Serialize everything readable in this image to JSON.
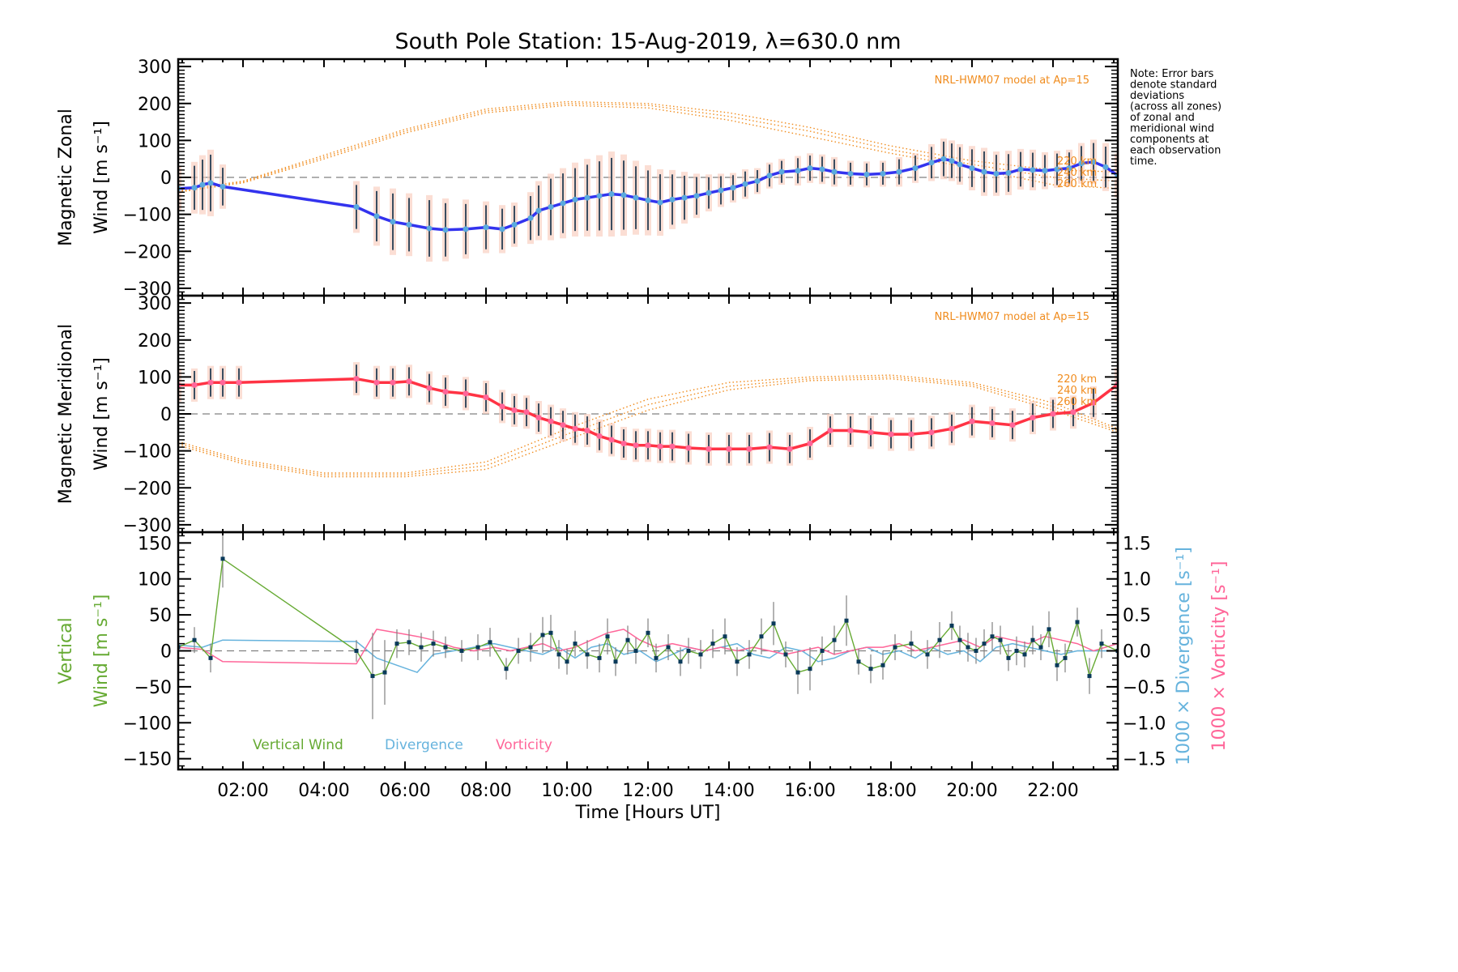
{
  "chart_data": {
    "type": "line",
    "title": "South Pole Station: 15-Aug-2019, λ=630.0 nm",
    "note_lines": [
      "Note: Error bars",
      "denote standard",
      "deviations",
      "(across all zones)",
      "of zonal and",
      "meridional wind",
      "components at",
      "each observation",
      "time."
    ],
    "xlabel": "Time [Hours UT]",
    "xlim": [
      0.4,
      23.6
    ],
    "x_ticks": [
      {
        "value": 2,
        "label": "02:00"
      },
      {
        "value": 4,
        "label": "04:00"
      },
      {
        "value": 6,
        "label": "06:00"
      },
      {
        "value": 8,
        "label": "08:00"
      },
      {
        "value": 10,
        "label": "10:00"
      },
      {
        "value": 12,
        "label": "12:00"
      },
      {
        "value": 14,
        "label": "14:00"
      },
      {
        "value": 16,
        "label": "16:00"
      },
      {
        "value": 18,
        "label": "18:00"
      },
      {
        "value": 20,
        "label": "20:00"
      },
      {
        "value": 22,
        "label": "22:00"
      }
    ],
    "colors": {
      "zonal": "#3333ee",
      "zonal_marker": "#5aaadd",
      "meridional": "#ff3344",
      "meridional_marker": "#ff6699",
      "model": "#f08c1e",
      "vertical": "#66aa33",
      "divergence": "#66b3dd",
      "vorticity": "#ff6699",
      "errorbar": "#0a2a44",
      "vertical_errorbar": "#808080",
      "zero_line": "#808080"
    },
    "panels": [
      {
        "name": "zonal",
        "ylabel_line1": "Magnetic Zonal",
        "ylabel_line2": "Wind [m s⁻¹]",
        "ylim": [
          -320,
          320
        ],
        "y_ticks": [
          300,
          200,
          100,
          0,
          -100,
          -200,
          -300
        ],
        "model_label": "NRL-HWM07 model at Ap=15",
        "altitude_labels": [
          "220 km",
          "240 km",
          "260 km"
        ],
        "series": {
          "x": [
            0.4,
            0.8,
            1.0,
            1.2,
            1.5,
            4.8,
            5.3,
            5.7,
            6.1,
            6.6,
            7.0,
            7.5,
            8.0,
            8.4,
            8.7,
            9.1,
            9.3,
            9.6,
            9.9,
            10.2,
            10.5,
            10.8,
            11.1,
            11.4,
            11.7,
            12.0,
            12.3,
            12.6,
            12.9,
            13.2,
            13.5,
            13.8,
            14.1,
            14.4,
            14.7,
            15.0,
            15.3,
            15.7,
            16.0,
            16.3,
            16.6,
            17.0,
            17.4,
            17.8,
            18.2,
            18.6,
            19.0,
            19.3,
            19.5,
            19.7,
            20.0,
            20.3,
            20.6,
            20.9,
            21.2,
            21.5,
            21.8,
            22.1,
            22.4,
            22.7,
            23.0,
            23.3,
            23.6
          ],
          "y": [
            -30,
            -28,
            -20,
            -15,
            -25,
            -80,
            -105,
            -120,
            -128,
            -138,
            -142,
            -140,
            -135,
            -140,
            -128,
            -110,
            -90,
            -80,
            -70,
            -60,
            -55,
            -50,
            -45,
            -48,
            -55,
            -62,
            -68,
            -60,
            -55,
            -50,
            -42,
            -35,
            -28,
            -18,
            -10,
            5,
            15,
            18,
            25,
            22,
            15,
            10,
            8,
            10,
            15,
            25,
            40,
            50,
            45,
            35,
            25,
            15,
            10,
            12,
            22,
            20,
            18,
            22,
            25,
            38,
            42,
            28,
            5
          ],
          "error": [
            60,
            70,
            80,
            90,
            60,
            70,
            80,
            90,
            85,
            90,
            85,
            80,
            70,
            65,
            60,
            70,
            80,
            90,
            95,
            100,
            105,
            110,
            115,
            110,
            100,
            95,
            90,
            80,
            70,
            60,
            50,
            45,
            40,
            40,
            35,
            35,
            35,
            40,
            40,
            40,
            40,
            35,
            35,
            35,
            40,
            40,
            50,
            55,
            55,
            55,
            60,
            65,
            60,
            60,
            55,
            55,
            50,
            50,
            50,
            55,
            60,
            65,
            60
          ]
        },
        "model_220km": {
          "x": [
            0.4,
            2,
            4,
            6,
            8,
            10,
            12,
            14,
            16,
            18,
            20,
            22,
            23.6
          ],
          "y": [
            -35,
            -10,
            60,
            130,
            185,
            205,
            200,
            175,
            135,
            85,
            45,
            20,
            15
          ]
        },
        "model_240km": {
          "x": [
            0.4,
            2,
            4,
            6,
            8,
            10,
            12,
            14,
            16,
            18,
            20,
            22,
            23.6
          ],
          "y": [
            -38,
            -12,
            55,
            125,
            180,
            200,
            195,
            165,
            125,
            75,
            35,
            0,
            -10
          ]
        },
        "model_260km": {
          "x": [
            0.4,
            2,
            4,
            6,
            8,
            10,
            12,
            14,
            16,
            18,
            20,
            22,
            23.6
          ],
          "y": [
            -40,
            -15,
            50,
            120,
            175,
            195,
            188,
            155,
            110,
            65,
            25,
            -20,
            -30
          ]
        }
      },
      {
        "name": "meridional",
        "ylabel_line1": "Magnetic Meridional",
        "ylabel_line2": "Wind [m s⁻¹]",
        "ylim": [
          -320,
          320
        ],
        "y_ticks": [
          300,
          200,
          100,
          0,
          -100,
          -200,
          -300
        ],
        "model_label": "NRL-HWM07 model at Ap=15",
        "altitude_labels": [
          "220 km",
          "240 km",
          "260 km"
        ],
        "series": {
          "x": [
            0.4,
            0.8,
            1.2,
            1.5,
            1.9,
            4.8,
            5.3,
            5.7,
            6.1,
            6.6,
            7.0,
            7.5,
            8.0,
            8.4,
            8.7,
            9.0,
            9.3,
            9.6,
            9.9,
            10.2,
            10.5,
            10.8,
            11.1,
            11.4,
            11.7,
            12.0,
            12.3,
            12.6,
            13.0,
            13.5,
            14.0,
            14.5,
            15.0,
            15.5,
            16.0,
            16.5,
            17.0,
            17.5,
            18.0,
            18.5,
            19.0,
            19.5,
            20.0,
            20.5,
            21.0,
            21.5,
            22.0,
            22.5,
            23.0,
            23.6
          ],
          "y": [
            78,
            78,
            85,
            85,
            85,
            95,
            85,
            85,
            88,
            70,
            60,
            55,
            45,
            20,
            10,
            5,
            -10,
            -20,
            -30,
            -40,
            -45,
            -60,
            -70,
            -80,
            -85,
            -85,
            -88,
            -88,
            -92,
            -95,
            -95,
            -95,
            -90,
            -95,
            -80,
            -45,
            -45,
            -50,
            -55,
            -55,
            -50,
            -40,
            -20,
            -25,
            -30,
            -10,
            0,
            5,
            30,
            80
          ]
        },
        "model_220km": {
          "x": [
            0.4,
            2,
            4,
            6,
            8,
            10,
            12,
            14,
            16,
            18,
            20,
            22,
            23.6
          ],
          "y": [
            -75,
            -125,
            -160,
            -160,
            -130,
            -40,
            40,
            85,
            100,
            105,
            85,
            30,
            -40
          ]
        },
        "model_240km": {
          "x": [
            0.4,
            2,
            4,
            6,
            8,
            10,
            12,
            14,
            16,
            18,
            20,
            22,
            23.6
          ],
          "y": [
            -80,
            -130,
            -165,
            -165,
            -140,
            -55,
            25,
            75,
            95,
            100,
            80,
            20,
            -45
          ]
        },
        "model_260km": {
          "x": [
            0.4,
            2,
            4,
            6,
            8,
            10,
            12,
            14,
            16,
            18,
            20,
            22,
            23.6
          ],
          "y": [
            -85,
            -135,
            -170,
            -170,
            -150,
            -70,
            10,
            65,
            90,
            95,
            75,
            10,
            -50
          ]
        }
      },
      {
        "name": "vertical",
        "ylabel_line1": "Vertical",
        "ylabel_line2": "Wind [m s⁻¹]",
        "ylim": [
          -165,
          165
        ],
        "y_ticks": [
          150,
          100,
          50,
          0,
          -50,
          -100,
          -150
        ],
        "y2label_div": "1000 × Divergence [s⁻¹]",
        "y2label_vort": "1000 × Vorticity [s⁻¹]",
        "y2lim": [
          -1.65,
          1.65
        ],
        "y2_ticks": [
          {
            "value": 1.5,
            "label": "1.5"
          },
          {
            "value": 1.0,
            "label": "1.0"
          },
          {
            "value": 0.5,
            "label": "0.5"
          },
          {
            "value": 0.0,
            "label": "0.0"
          },
          {
            "value": -0.5,
            "label": "−0.5"
          },
          {
            "value": -1.0,
            "label": "−1.0"
          },
          {
            "value": -1.5,
            "label": "−1.5"
          }
        ],
        "legend": [
          "Vertical Wind",
          "Divergence",
          "Vorticity"
        ],
        "vertical_wind": {
          "x": [
            0.4,
            0.8,
            1.2,
            1.5,
            4.8,
            5.2,
            5.5,
            5.8,
            6.1,
            6.4,
            6.7,
            7.0,
            7.4,
            7.8,
            8.1,
            8.5,
            8.8,
            9.1,
            9.4,
            9.6,
            9.8,
            10.0,
            10.2,
            10.5,
            10.8,
            11.0,
            11.2,
            11.5,
            11.7,
            12.0,
            12.2,
            12.5,
            12.8,
            13.0,
            13.3,
            13.6,
            13.9,
            14.2,
            14.5,
            14.8,
            15.1,
            15.4,
            15.7,
            16.0,
            16.3,
            16.6,
            16.9,
            17.2,
            17.5,
            17.8,
            18.1,
            18.5,
            18.9,
            19.2,
            19.5,
            19.7,
            19.9,
            20.1,
            20.3,
            20.5,
            20.7,
            20.9,
            21.1,
            21.3,
            21.5,
            21.7,
            21.9,
            22.1,
            22.3,
            22.6,
            22.9,
            23.2,
            23.6
          ],
          "y": [
            5,
            15,
            -10,
            128,
            0,
            -35,
            -30,
            10,
            12,
            5,
            10,
            5,
            0,
            5,
            12,
            -25,
            0,
            5,
            22,
            25,
            -5,
            -15,
            10,
            -5,
            -10,
            20,
            -15,
            15,
            0,
            25,
            -10,
            5,
            -15,
            0,
            -5,
            10,
            20,
            -15,
            -5,
            20,
            38,
            -5,
            -30,
            -25,
            0,
            15,
            42,
            -15,
            -25,
            -20,
            5,
            10,
            -5,
            15,
            35,
            15,
            5,
            0,
            10,
            20,
            15,
            -10,
            0,
            -5,
            15,
            5,
            30,
            -20,
            -10,
            40,
            -35,
            10,
            0
          ]
        },
        "vertical_wind_error": [
          10,
          18,
          20,
          40,
          15,
          60,
          45,
          20,
          18,
          20,
          18,
          15,
          15,
          18,
          20,
          15,
          18,
          20,
          25,
          25,
          20,
          18,
          18,
          20,
          20,
          25,
          20,
          20,
          18,
          20,
          20,
          18,
          20,
          18,
          20,
          20,
          25,
          20,
          20,
          25,
          30,
          18,
          30,
          30,
          20,
          20,
          35,
          18,
          20,
          20,
          18,
          18,
          20,
          25,
          20,
          20,
          20,
          18,
          20,
          20,
          20,
          18,
          20,
          18,
          20,
          18,
          25,
          22,
          20,
          20,
          25,
          20,
          18
        ],
        "divergence": {
          "x": [
            0.4,
            1.0,
            1.5,
            4.8,
            5.3,
            5.8,
            6.3,
            6.7,
            7.2,
            7.7,
            8.2,
            8.6,
            9.0,
            9.4,
            9.8,
            10.2,
            10.6,
            11.0,
            11.4,
            11.8,
            12.2,
            12.6,
            13.0,
            13.4,
            13.8,
            14.2,
            14.6,
            15.0,
            15.4,
            15.8,
            16.2,
            16.6,
            17.0,
            17.4,
            17.8,
            18.2,
            18.6,
            19.0,
            19.4,
            19.8,
            20.2,
            20.6,
            21.0,
            21.4,
            21.8,
            22.2,
            22.6,
            23.0,
            23.6
          ],
          "y": [
            0.08,
            0.05,
            0.15,
            0.13,
            -0.1,
            -0.2,
            -0.3,
            -0.05,
            0.0,
            0.05,
            0.1,
            0.05,
            0.0,
            -0.05,
            0.05,
            -0.1,
            0.05,
            0.1,
            -0.05,
            0.0,
            -0.15,
            -0.05,
            0.05,
            0.0,
            0.05,
            0.1,
            -0.05,
            -0.1,
            0.05,
            0.0,
            -0.15,
            -0.1,
            0.0,
            0.05,
            -0.05,
            0.0,
            -0.1,
            0.05,
            -0.05,
            0.0,
            -0.15,
            0.05,
            0.1,
            0.05,
            0.0,
            -0.05,
            0.0,
            0.0,
            0.0
          ]
        },
        "vorticity": {
          "x": [
            0.4,
            1.0,
            1.5,
            4.8,
            5.3,
            5.8,
            6.3,
            6.7,
            7.2,
            7.7,
            8.2,
            8.6,
            9.0,
            9.4,
            9.8,
            10.2,
            10.6,
            11.0,
            11.4,
            11.8,
            12.2,
            12.6,
            13.0,
            13.4,
            13.8,
            14.2,
            14.6,
            15.0,
            15.4,
            15.8,
            16.2,
            16.6,
            17.0,
            17.4,
            17.8,
            18.2,
            18.6,
            19.0,
            19.4,
            19.8,
            20.2,
            20.6,
            21.0,
            21.4,
            21.8,
            22.2,
            22.6,
            23.0,
            23.6
          ],
          "y": [
            0.05,
            0.02,
            -0.15,
            -0.18,
            0.3,
            0.25,
            0.2,
            0.15,
            0.05,
            0.0,
            0.05,
            0.0,
            0.05,
            0.1,
            0.0,
            0.05,
            0.15,
            0.25,
            0.3,
            0.15,
            0.05,
            0.1,
            0.05,
            0.0,
            0.05,
            0.0,
            0.05,
            0.0,
            -0.05,
            0.0,
            0.05,
            -0.05,
            0.0,
            0.05,
            0.05,
            0.1,
            0.0,
            0.05,
            0.1,
            0.15,
            0.05,
            0.2,
            0.15,
            0.1,
            0.2,
            0.15,
            0.1,
            0.0,
            0.1
          ]
        }
      }
    ]
  }
}
